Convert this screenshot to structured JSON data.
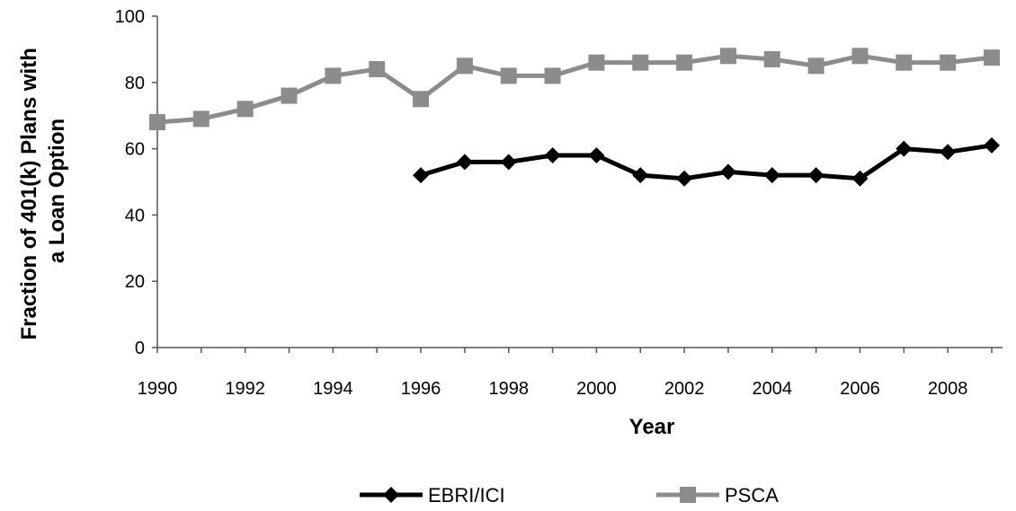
{
  "chart_data": {
    "type": "line",
    "title": "",
    "xlabel": "Year",
    "ylabel": [
      "Fraction of 401(k) Plans with",
      "a Loan Option"
    ],
    "xlim": [
      1990,
      2009
    ],
    "ylim": [
      0,
      100
    ],
    "xticks": [
      1990,
      1992,
      1994,
      1996,
      1998,
      2000,
      2002,
      2004,
      2006,
      2008
    ],
    "yticks": [
      0,
      20,
      40,
      60,
      80,
      100
    ],
    "grid": false,
    "legend_position": "bottom",
    "series": [
      {
        "name": "EBRI/ICI",
        "color": "#000000",
        "marker": "diamond",
        "x": [
          1996,
          1997,
          1998,
          1999,
          2000,
          2001,
          2002,
          2003,
          2004,
          2005,
          2006,
          2007,
          2008,
          2009
        ],
        "y": [
          52,
          56,
          56,
          58,
          58,
          52,
          51,
          53,
          52,
          52,
          51,
          60,
          59,
          61
        ]
      },
      {
        "name": "PSCA",
        "color": "#8c8c8c",
        "marker": "square",
        "x": [
          1990,
          1991,
          1992,
          1993,
          1994,
          1995,
          1996,
          1997,
          1998,
          1999,
          2000,
          2001,
          2002,
          2003,
          2004,
          2005,
          2006,
          2007,
          2008,
          2009
        ],
        "y": [
          68,
          69,
          72,
          76,
          82,
          84,
          75,
          85,
          82,
          82,
          86,
          86,
          86,
          88,
          87,
          85,
          88,
          86,
          86,
          87.5
        ]
      }
    ]
  }
}
